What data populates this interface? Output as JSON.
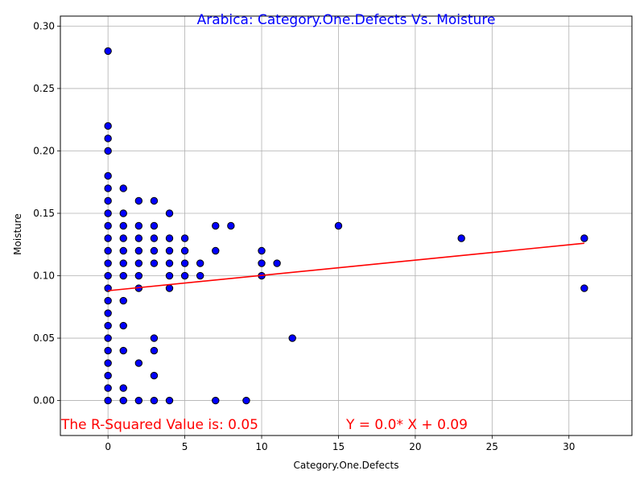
{
  "chart_data": {
    "type": "scatter",
    "title": "Arabica: Category.One.Defects Vs. Moisture",
    "xlabel": "Category.One.Defects",
    "ylabel": "Moisture",
    "xlim": [
      -3.1,
      34.1
    ],
    "ylim": [
      -0.028,
      0.308
    ],
    "xticks": [
      0,
      5,
      10,
      15,
      20,
      25,
      30
    ],
    "yticks": [
      0.0,
      0.05,
      0.1,
      0.15,
      0.2,
      0.25,
      0.3
    ],
    "xtick_labels": [
      "0",
      "5",
      "10",
      "15",
      "20",
      "25",
      "30"
    ],
    "ytick_labels": [
      "0.00",
      "0.05",
      "0.10",
      "0.15",
      "0.20",
      "0.25",
      "0.30"
    ],
    "grid": true,
    "points": [
      [
        0,
        0.28
      ],
      [
        0,
        0.22
      ],
      [
        0,
        0.21
      ],
      [
        0,
        0.2
      ],
      [
        0,
        0.18
      ],
      [
        0,
        0.17
      ],
      [
        0,
        0.16
      ],
      [
        0,
        0.15
      ],
      [
        0,
        0.14
      ],
      [
        0,
        0.13
      ],
      [
        0,
        0.12
      ],
      [
        0,
        0.11
      ],
      [
        0,
        0.1
      ],
      [
        0,
        0.09
      ],
      [
        0,
        0.08
      ],
      [
        0,
        0.07
      ],
      [
        0,
        0.06
      ],
      [
        0,
        0.05
      ],
      [
        0,
        0.04
      ],
      [
        0,
        0.03
      ],
      [
        0,
        0.02
      ],
      [
        0,
        0.01
      ],
      [
        0,
        0.0
      ],
      [
        1,
        0.17
      ],
      [
        1,
        0.15
      ],
      [
        1,
        0.14
      ],
      [
        1,
        0.13
      ],
      [
        1,
        0.12
      ],
      [
        1,
        0.11
      ],
      [
        1,
        0.1
      ],
      [
        1,
        0.08
      ],
      [
        1,
        0.06
      ],
      [
        1,
        0.04
      ],
      [
        1,
        0.01
      ],
      [
        1,
        0.0
      ],
      [
        2,
        0.16
      ],
      [
        2,
        0.14
      ],
      [
        2,
        0.13
      ],
      [
        2,
        0.12
      ],
      [
        2,
        0.11
      ],
      [
        2,
        0.1
      ],
      [
        2,
        0.09
      ],
      [
        2,
        0.03
      ],
      [
        2,
        0.0
      ],
      [
        3,
        0.16
      ],
      [
        3,
        0.14
      ],
      [
        3,
        0.13
      ],
      [
        3,
        0.12
      ],
      [
        3,
        0.11
      ],
      [
        3,
        0.05
      ],
      [
        3,
        0.04
      ],
      [
        3,
        0.02
      ],
      [
        3,
        0.0
      ],
      [
        4,
        0.15
      ],
      [
        4,
        0.13
      ],
      [
        4,
        0.12
      ],
      [
        4,
        0.11
      ],
      [
        4,
        0.1
      ],
      [
        4,
        0.09
      ],
      [
        4,
        0.0
      ],
      [
        5,
        0.13
      ],
      [
        5,
        0.12
      ],
      [
        5,
        0.11
      ],
      [
        5,
        0.1
      ],
      [
        6,
        0.11
      ],
      [
        6,
        0.1
      ],
      [
        7,
        0.14
      ],
      [
        7,
        0.12
      ],
      [
        7,
        0.0
      ],
      [
        8,
        0.14
      ],
      [
        9,
        0.0
      ],
      [
        10,
        0.12
      ],
      [
        10,
        0.11
      ],
      [
        10,
        0.1
      ],
      [
        11,
        0.11
      ],
      [
        12,
        0.05
      ],
      [
        15,
        0.14
      ],
      [
        23,
        0.13
      ],
      [
        31,
        0.13
      ],
      [
        31,
        0.09
      ]
    ],
    "marker_color": "#0000ff",
    "marker_edge_color": "#000000",
    "regression_line": {
      "x": [
        0,
        31
      ],
      "y": [
        0.088,
        0.126
      ],
      "color": "#ff0000"
    },
    "annotations": {
      "r_squared": "The R-Squared Value is: 0.05",
      "equation": "Y = 0.0* X + 0.09"
    },
    "title_color": "#0000ff",
    "annotation_color": "#ff0000"
  }
}
